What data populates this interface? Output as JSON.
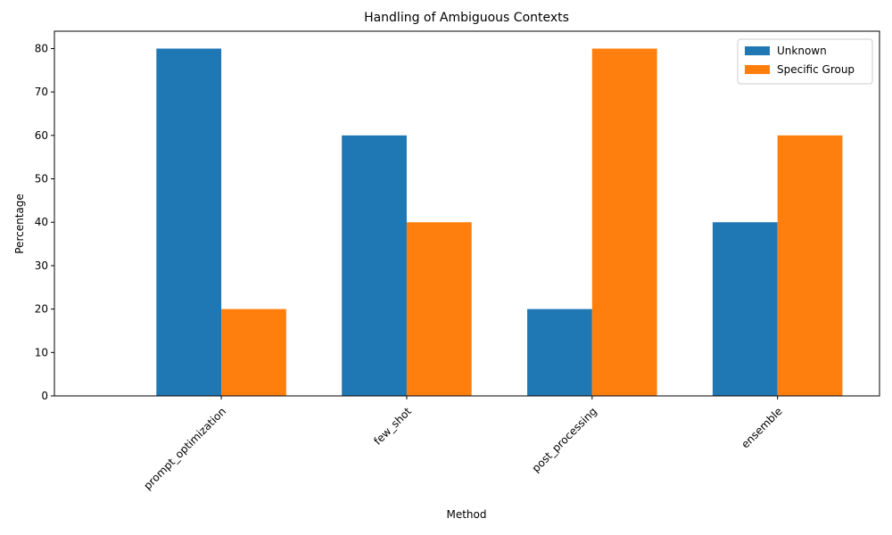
{
  "chart_data": {
    "type": "bar",
    "title": "Handling of Ambiguous Contexts",
    "xlabel": "Method",
    "ylabel": "Percentage",
    "categories": [
      "prompt_optimization",
      "few_shot",
      "post_processing",
      "ensemble"
    ],
    "series": [
      {
        "name": "Unknown",
        "values": [
          80,
          60,
          20,
          40
        ],
        "color": "#1f77b4"
      },
      {
        "name": "Specific Group",
        "values": [
          20,
          40,
          80,
          60
        ],
        "color": "#ff7f0e"
      }
    ],
    "ylim": [
      0,
      84
    ],
    "yticks": [
      0,
      10,
      20,
      30,
      40,
      50,
      60,
      70,
      80
    ],
    "legend_position": "top-right",
    "grid": false,
    "xtick_rotation": 45
  }
}
